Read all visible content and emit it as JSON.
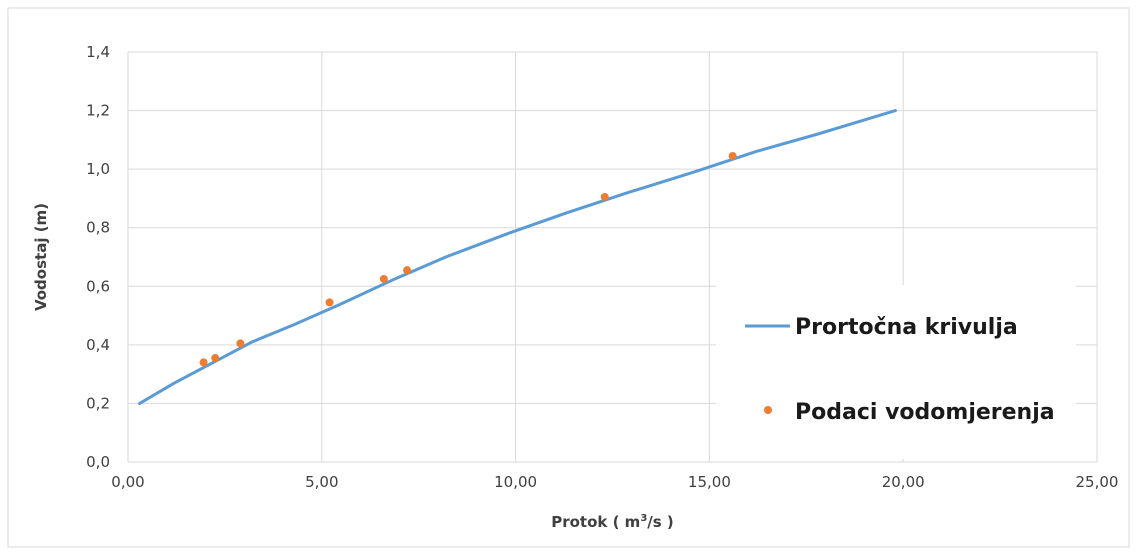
{
  "chart_data": {
    "type": "scatter",
    "title": "",
    "xlabel": "Protok ( m3/s )",
    "xlabel_parts": {
      "before": "Protok ( m",
      "sup": "3",
      "after": "/s )"
    },
    "ylabel": "Vodostaj (m)",
    "xlim": [
      0,
      25
    ],
    "ylim": [
      0,
      1.4
    ],
    "x_ticks": [
      0,
      5,
      10,
      15,
      20,
      25
    ],
    "x_tick_labels": [
      "0,00",
      "5,00",
      "10,00",
      "15,00",
      "20,00",
      "25,00"
    ],
    "y_ticks": [
      0,
      0.2,
      0.4,
      0.6,
      0.8,
      1.0,
      1.2,
      1.4
    ],
    "y_tick_labels": [
      "0,0",
      "0,2",
      "0,4",
      "0,6",
      "0,8",
      "1,0",
      "1,2",
      "1,4"
    ],
    "grid": true,
    "legend_position": "right",
    "series": [
      {
        "name": "Prortočna krivulja",
        "kind": "line",
        "color": "#5B9BD5",
        "x": [
          0.3,
          1.2,
          2.2,
          3.2,
          4.3,
          5.5,
          6.8,
          8.2,
          9.8,
          11.3,
          12.9,
          14.6,
          16.2,
          17.8,
          19.8
        ],
        "y": [
          0.2,
          0.27,
          0.34,
          0.41,
          0.47,
          0.54,
          0.62,
          0.7,
          0.78,
          0.85,
          0.92,
          0.99,
          1.06,
          1.12,
          1.2
        ]
      },
      {
        "name": "Podaci vodomjerenja",
        "kind": "scatter",
        "color": "#ED7D31",
        "x": [
          1.95,
          2.25,
          2.9,
          5.2,
          6.6,
          7.2,
          12.3,
          15.6
        ],
        "y": [
          0.34,
          0.355,
          0.405,
          0.545,
          0.625,
          0.655,
          0.905,
          1.045
        ]
      }
    ]
  }
}
